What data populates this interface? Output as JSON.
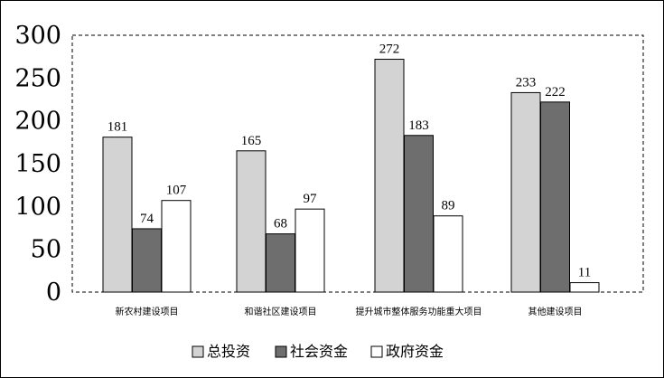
{
  "chart_data": {
    "type": "bar",
    "title": "",
    "xlabel": "",
    "ylabel": "",
    "categories": [
      "新农村建设项目",
      "和谐社区建设项目",
      "提升城市整体服务功能重大项目",
      "其他建设项目"
    ],
    "series": [
      {
        "name": "总投资",
        "values": [
          181,
          165,
          272,
          233
        ],
        "color": "#d3d3d3"
      },
      {
        "name": "社会资金",
        "values": [
          74,
          68,
          183,
          222
        ],
        "color": "#6e6e6e"
      },
      {
        "name": "政府资金",
        "values": [
          107,
          97,
          89,
          11
        ],
        "color": "#ffffff"
      }
    ],
    "ylim": [
      0,
      300
    ],
    "yticks": [
      0,
      50,
      100,
      150,
      200,
      250,
      300
    ],
    "grid": false,
    "legend_position": "bottom"
  }
}
